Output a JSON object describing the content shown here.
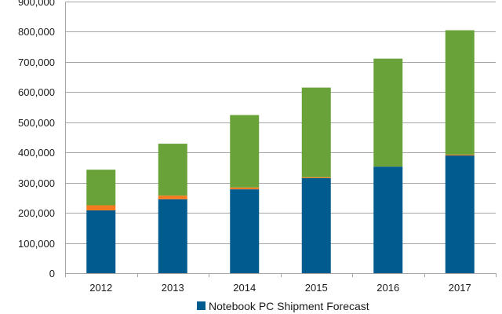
{
  "chart_data": {
    "type": "bar",
    "stacked": true,
    "categories": [
      "2012",
      "2013",
      "2014",
      "2015",
      "2016",
      "2017"
    ],
    "series": [
      {
        "name": "Notebook PC Shipment Forecast",
        "color": "#005b8f",
        "values": [
          208000,
          245000,
          278000,
          315000,
          353000,
          390000
        ]
      },
      {
        "color": "#f47b20",
        "values": [
          17000,
          12000,
          6000,
          3000,
          0,
          3000
        ]
      },
      {
        "color": "#6aa23a",
        "values": [
          118000,
          172000,
          240000,
          297000,
          358000,
          412000
        ]
      }
    ],
    "ylim": [
      0,
      900000
    ],
    "yticks": [
      "0",
      "100,000",
      "200,000",
      "300,000",
      "400,000",
      "500,000",
      "600,000",
      "700,000",
      "800,000",
      "900,000"
    ],
    "ytick_values": [
      0,
      100000,
      200000,
      300000,
      400000,
      500000,
      600000,
      700000,
      800000,
      900000
    ],
    "grid": true,
    "legend": "bottom",
    "grid_color": "#a6a6a6"
  }
}
